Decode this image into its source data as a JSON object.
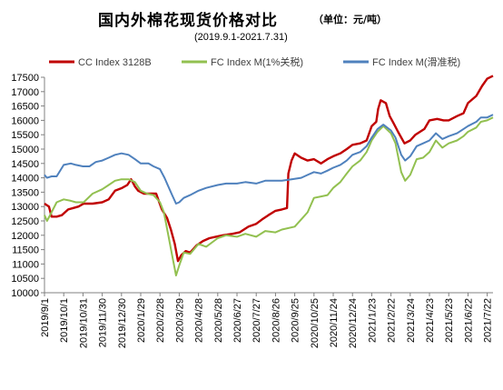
{
  "chart_data": {
    "type": "line",
    "title": "国内外棉花现货价格对比",
    "unit_note": "（单位：元/吨）",
    "subtitle": "(2019.9.1-2021.7.31)",
    "xlabel": "",
    "ylabel": "",
    "ylim": [
      10000,
      17500
    ],
    "y_ticks": [
      10000,
      10500,
      11000,
      11500,
      12000,
      12500,
      13000,
      13500,
      14000,
      14500,
      15000,
      15500,
      16000,
      16500,
      17000,
      17500
    ],
    "x_range": [
      "2019-09-01",
      "2021-07-31"
    ],
    "x_ticks": [
      "2019/9/1",
      "2019/10/1",
      "2019/10/31",
      "2019/11/30",
      "2019/12/30",
      "2020/1/29",
      "2020/2/28",
      "2020/3/29",
      "2020/4/28",
      "2020/5/28",
      "2020/6/27",
      "2020/7/27",
      "2020/8/26",
      "2020/9/25",
      "2020/10/25",
      "2020/11/24",
      "2020/12/24",
      "2021/1/23",
      "2021/2/22",
      "2021/3/24",
      "2021/4/23",
      "2021/5/23",
      "2021/6/22",
      "2021/7/22"
    ],
    "grid": false,
    "legend_position": "top",
    "series": [
      {
        "name": "CC Index 3128B",
        "color": "#c00000",
        "points": [
          [
            "2019-09-01",
            13100
          ],
          [
            "2019-09-08",
            13000
          ],
          [
            "2019-09-12",
            12650
          ],
          [
            "2019-09-20",
            12650
          ],
          [
            "2019-09-28",
            12700
          ],
          [
            "2019-10-08",
            12900
          ],
          [
            "2019-10-16",
            12950
          ],
          [
            "2019-10-24",
            13000
          ],
          [
            "2019-11-01",
            13100
          ],
          [
            "2019-11-15",
            13100
          ],
          [
            "2019-11-30",
            13150
          ],
          [
            "2019-12-10",
            13250
          ],
          [
            "2019-12-20",
            13550
          ],
          [
            "2019-12-31",
            13650
          ],
          [
            "2020-01-08",
            13750
          ],
          [
            "2020-01-14",
            13950
          ],
          [
            "2020-01-20",
            13700
          ],
          [
            "2020-01-25",
            13550
          ],
          [
            "2020-02-03",
            13450
          ],
          [
            "2020-02-15",
            13450
          ],
          [
            "2020-02-22",
            13450
          ],
          [
            "2020-02-26",
            13200
          ],
          [
            "2020-03-02",
            12900
          ],
          [
            "2020-03-10",
            12600
          ],
          [
            "2020-03-16",
            12200
          ],
          [
            "2020-03-22",
            11700
          ],
          [
            "2020-03-27",
            11100
          ],
          [
            "2020-04-01",
            11300
          ],
          [
            "2020-04-08",
            11450
          ],
          [
            "2020-04-15",
            11400
          ],
          [
            "2020-04-25",
            11650
          ],
          [
            "2020-05-05",
            11800
          ],
          [
            "2020-05-15",
            11900
          ],
          [
            "2020-05-25",
            11950
          ],
          [
            "2020-06-05",
            12000
          ],
          [
            "2020-06-20",
            12050
          ],
          [
            "2020-07-01",
            12100
          ],
          [
            "2020-07-15",
            12300
          ],
          [
            "2020-07-27",
            12400
          ],
          [
            "2020-08-05",
            12550
          ],
          [
            "2020-08-15",
            12700
          ],
          [
            "2020-08-26",
            12850
          ],
          [
            "2020-09-05",
            12900
          ],
          [
            "2020-09-13",
            12950
          ],
          [
            "2020-09-15",
            14150
          ],
          [
            "2020-09-20",
            14600
          ],
          [
            "2020-09-25",
            14850
          ],
          [
            "2020-10-05",
            14700
          ],
          [
            "2020-10-15",
            14600
          ],
          [
            "2020-10-25",
            14650
          ],
          [
            "2020-11-05",
            14500
          ],
          [
            "2020-11-15",
            14650
          ],
          [
            "2020-11-24",
            14750
          ],
          [
            "2020-12-05",
            14850
          ],
          [
            "2020-12-15",
            15000
          ],
          [
            "2020-12-24",
            15150
          ],
          [
            "2021-01-05",
            15200
          ],
          [
            "2021-01-15",
            15300
          ],
          [
            "2021-01-23",
            15800
          ],
          [
            "2021-01-30",
            15950
          ],
          [
            "2021-02-02",
            16400
          ],
          [
            "2021-02-06",
            16700
          ],
          [
            "2021-02-14",
            16600
          ],
          [
            "2021-02-20",
            16150
          ],
          [
            "2021-02-26",
            15900
          ],
          [
            "2021-03-05",
            15600
          ],
          [
            "2021-03-15",
            15200
          ],
          [
            "2021-03-24",
            15300
          ],
          [
            "2021-04-01",
            15500
          ],
          [
            "2021-04-15",
            15700
          ],
          [
            "2021-04-23",
            16000
          ],
          [
            "2021-05-05",
            16050
          ],
          [
            "2021-05-15",
            16000
          ],
          [
            "2021-05-23",
            16000
          ],
          [
            "2021-06-05",
            16150
          ],
          [
            "2021-06-15",
            16250
          ],
          [
            "2021-06-22",
            16600
          ],
          [
            "2021-07-05",
            16850
          ],
          [
            "2021-07-14",
            17200
          ],
          [
            "2021-07-22",
            17450
          ],
          [
            "2021-07-31",
            17550
          ]
        ]
      },
      {
        "name": "FC Index M(1%关税)",
        "color": "#92c050",
        "points": [
          [
            "2019-09-01",
            12700
          ],
          [
            "2019-09-05",
            12500
          ],
          [
            "2019-09-12",
            12800
          ],
          [
            "2019-09-20",
            13150
          ],
          [
            "2019-10-01",
            13250
          ],
          [
            "2019-10-12",
            13200
          ],
          [
            "2019-10-20",
            13150
          ],
          [
            "2019-11-01",
            13150
          ],
          [
            "2019-11-15",
            13450
          ],
          [
            "2019-11-30",
            13600
          ],
          [
            "2019-12-10",
            13750
          ],
          [
            "2019-12-20",
            13900
          ],
          [
            "2019-12-30",
            13950
          ],
          [
            "2020-01-10",
            13950
          ],
          [
            "2020-01-20",
            13850
          ],
          [
            "2020-01-29",
            13550
          ],
          [
            "2020-02-08",
            13450
          ],
          [
            "2020-02-18",
            13400
          ],
          [
            "2020-02-28",
            13150
          ],
          [
            "2020-03-05",
            12800
          ],
          [
            "2020-03-12",
            12000
          ],
          [
            "2020-03-18",
            11300
          ],
          [
            "2020-03-24",
            10600
          ],
          [
            "2020-03-29",
            10950
          ],
          [
            "2020-04-05",
            11400
          ],
          [
            "2020-04-15",
            11350
          ],
          [
            "2020-04-28",
            11700
          ],
          [
            "2020-05-10",
            11600
          ],
          [
            "2020-05-28",
            11900
          ],
          [
            "2020-06-10",
            12000
          ],
          [
            "2020-06-27",
            11950
          ],
          [
            "2020-07-10",
            12050
          ],
          [
            "2020-07-27",
            11950
          ],
          [
            "2020-08-10",
            12150
          ],
          [
            "2020-08-26",
            12100
          ],
          [
            "2020-09-05",
            12200
          ],
          [
            "2020-09-25",
            12300
          ],
          [
            "2020-10-05",
            12550
          ],
          [
            "2020-10-15",
            12800
          ],
          [
            "2020-10-25",
            13300
          ],
          [
            "2020-11-05",
            13350
          ],
          [
            "2020-11-15",
            13400
          ],
          [
            "2020-11-24",
            13650
          ],
          [
            "2020-12-05",
            13850
          ],
          [
            "2020-12-15",
            14150
          ],
          [
            "2020-12-24",
            14400
          ],
          [
            "2021-01-05",
            14600
          ],
          [
            "2021-01-15",
            14900
          ],
          [
            "2021-01-23",
            15300
          ],
          [
            "2021-02-01",
            15600
          ],
          [
            "2021-02-10",
            15800
          ],
          [
            "2021-02-22",
            15550
          ],
          [
            "2021-03-01",
            15200
          ],
          [
            "2021-03-10",
            14200
          ],
          [
            "2021-03-16",
            13900
          ],
          [
            "2021-03-24",
            14100
          ],
          [
            "2021-04-03",
            14650
          ],
          [
            "2021-04-13",
            14700
          ],
          [
            "2021-04-23",
            14900
          ],
          [
            "2021-05-03",
            15300
          ],
          [
            "2021-05-13",
            15050
          ],
          [
            "2021-05-23",
            15200
          ],
          [
            "2021-06-05",
            15300
          ],
          [
            "2021-06-15",
            15450
          ],
          [
            "2021-06-22",
            15600
          ],
          [
            "2021-07-05",
            15750
          ],
          [
            "2021-07-12",
            15950
          ],
          [
            "2021-07-22",
            16000
          ],
          [
            "2021-07-31",
            16100
          ]
        ]
      },
      {
        "name": "FC Index M(滑准税)",
        "color": "#4f81bd",
        "points": [
          [
            "2019-09-01",
            14100
          ],
          [
            "2019-09-05",
            14000
          ],
          [
            "2019-09-12",
            14050
          ],
          [
            "2019-09-20",
            14050
          ],
          [
            "2019-10-01",
            14450
          ],
          [
            "2019-10-12",
            14500
          ],
          [
            "2019-10-20",
            14450
          ],
          [
            "2019-10-31",
            14400
          ],
          [
            "2019-11-10",
            14400
          ],
          [
            "2019-11-20",
            14550
          ],
          [
            "2019-11-30",
            14600
          ],
          [
            "2019-12-10",
            14700
          ],
          [
            "2019-12-20",
            14800
          ],
          [
            "2019-12-30",
            14850
          ],
          [
            "2020-01-10",
            14800
          ],
          [
            "2020-01-20",
            14650
          ],
          [
            "2020-01-29",
            14500
          ],
          [
            "2020-02-10",
            14500
          ],
          [
            "2020-02-18",
            14400
          ],
          [
            "2020-02-28",
            14300
          ],
          [
            "2020-03-06",
            14000
          ],
          [
            "2020-03-12",
            13700
          ],
          [
            "2020-03-18",
            13400
          ],
          [
            "2020-03-24",
            13100
          ],
          [
            "2020-03-29",
            13150
          ],
          [
            "2020-04-05",
            13300
          ],
          [
            "2020-04-15",
            13400
          ],
          [
            "2020-04-28",
            13550
          ],
          [
            "2020-05-10",
            13650
          ],
          [
            "2020-05-28",
            13750
          ],
          [
            "2020-06-10",
            13800
          ],
          [
            "2020-06-27",
            13800
          ],
          [
            "2020-07-10",
            13850
          ],
          [
            "2020-07-27",
            13800
          ],
          [
            "2020-08-10",
            13900
          ],
          [
            "2020-08-26",
            13900
          ],
          [
            "2020-09-05",
            13900
          ],
          [
            "2020-09-20",
            13950
          ],
          [
            "2020-10-05",
            14000
          ],
          [
            "2020-10-15",
            14100
          ],
          [
            "2020-10-25",
            14200
          ],
          [
            "2020-11-05",
            14150
          ],
          [
            "2020-11-15",
            14250
          ],
          [
            "2020-11-24",
            14350
          ],
          [
            "2020-12-05",
            14450
          ],
          [
            "2020-12-15",
            14600
          ],
          [
            "2020-12-24",
            14800
          ],
          [
            "2021-01-05",
            14900
          ],
          [
            "2021-01-15",
            15100
          ],
          [
            "2021-01-23",
            15400
          ],
          [
            "2021-02-01",
            15700
          ],
          [
            "2021-02-10",
            15850
          ],
          [
            "2021-02-22",
            15650
          ],
          [
            "2021-03-01",
            15400
          ],
          [
            "2021-03-10",
            14800
          ],
          [
            "2021-03-16",
            14600
          ],
          [
            "2021-03-24",
            14750
          ],
          [
            "2021-04-03",
            15100
          ],
          [
            "2021-04-13",
            15200
          ],
          [
            "2021-04-23",
            15300
          ],
          [
            "2021-05-03",
            15550
          ],
          [
            "2021-05-13",
            15350
          ],
          [
            "2021-05-23",
            15450
          ],
          [
            "2021-06-05",
            15550
          ],
          [
            "2021-06-15",
            15700
          ],
          [
            "2021-06-22",
            15800
          ],
          [
            "2021-07-05",
            15950
          ],
          [
            "2021-07-12",
            16100
          ],
          [
            "2021-07-22",
            16100
          ],
          [
            "2021-07-31",
            16200
          ]
        ]
      }
    ]
  }
}
